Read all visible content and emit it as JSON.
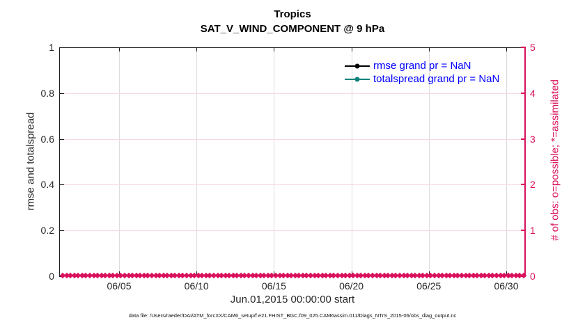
{
  "title": {
    "line1": "Tropics",
    "line2": "SAT_V_WIND_COMPONENT @ 9 hPa"
  },
  "axes": {
    "x": {
      "label": "Jun.01,2015 00:00:00 start",
      "tick_labels": [
        "06/05",
        "06/10",
        "06/15",
        "06/20",
        "06/25",
        "06/30"
      ]
    },
    "y_left": {
      "label": "rmse and totalspread",
      "tick_labels": [
        "1",
        "0.8",
        "0.6",
        "0.4",
        "0.2",
        "0"
      ],
      "range": [
        0,
        1
      ]
    },
    "y_right": {
      "label": "# of obs: o=possible; *=assimilated",
      "tick_labels": [
        "5",
        "4",
        "3",
        "2",
        "1",
        "0"
      ],
      "range": [
        0,
        5
      ]
    }
  },
  "legend": {
    "items": [
      {
        "label": "rmse grand pr = NaN",
        "line_color": "#000000"
      },
      {
        "label": "totalspread grand pr = NaN",
        "line_color": "#0f837b"
      }
    ],
    "text_color": "#0000ff",
    "box": "none"
  },
  "caption": "data file: /Users/raeder/DAI/ATM_forcXX/CAM6_setup/f.e21.FHIST_BGC.f09_025.CAM6assim.011/Diags_NTrS_2015-06/obs_diag_output.nc",
  "colors": {
    "right_axis_magenta": "#d9115c",
    "pink_grid": "#f7d9e6",
    "gray_grid": "#dcdcdc",
    "spine_dark": "#1f1f1f",
    "rmse_black": "#000000",
    "totalspread_teal": "#0f837b",
    "legend_blue": "#0000ff"
  },
  "chart_data": {
    "type": "line",
    "title": "Tropics — SAT_V_WIND_COMPONENT @ 9 hPa",
    "x": {
      "label": "Jun.01,2015 00:00:00 start",
      "start": "2015-06-01 00:00:00",
      "end": "2015-06-30",
      "tick_labels": [
        "06/05",
        "06/10",
        "06/15",
        "06/20",
        "06/25",
        "06/30"
      ]
    },
    "y_left": {
      "label": "rmse and totalspread",
      "lim": [
        0,
        1
      ]
    },
    "y_right": {
      "label": "# of obs: o=possible; *=assimilated",
      "lim": [
        0,
        5
      ]
    },
    "grid": true,
    "legend_position": "upper-right-inside-no-box",
    "series": [
      {
        "name": "rmse",
        "axis": "left",
        "grand_mean": "NaN",
        "values": "all NaN - no curve drawn"
      },
      {
        "name": "totalspread",
        "axis": "left",
        "grand_mean": "NaN",
        "values": "all NaN - no curve drawn"
      },
      {
        "name": "possible obs (o)",
        "axis": "right",
        "n_points": 120,
        "constant_value": 0
      },
      {
        "name": "assimilated obs (*)",
        "axis": "right",
        "n_points": 120,
        "constant_value": 0
      }
    ]
  }
}
